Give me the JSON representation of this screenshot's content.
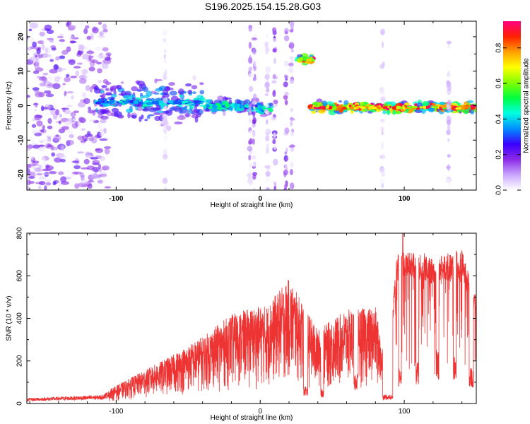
{
  "title": "S196.2025.154.15.28.G03",
  "chart_data": [
    {
      "type": "heatmap",
      "xlabel": "Height of straight line (km)",
      "ylabel": "Frequency (Hz)",
      "xlim": [
        -162,
        150
      ],
      "ylim": [
        -24.5,
        24.5
      ],
      "xticks": [
        -100,
        0,
        100
      ],
      "yticks": [
        -20,
        -10,
        0,
        10,
        20
      ],
      "colorbar": {
        "label": "Normalized spectral amplitude",
        "range": [
          0.0,
          0.95
        ],
        "ticks": [
          "0.0",
          "0.2",
          "0.4",
          "0.6",
          "0.8"
        ],
        "colors": [
          "#ffffff",
          "#c9a6ff",
          "#8b2ae6",
          "#3a00ff",
          "#0090ff",
          "#00ffe0",
          "#00ff40",
          "#80ff00",
          "#ffff00",
          "#ffa000",
          "#ff2000",
          "#ff0080"
        ]
      },
      "segments": [
        {
          "x_start": -162,
          "x_end": -105,
          "freq_center": 0,
          "freq_spread": 24,
          "peak_amplitude": 0.2
        },
        {
          "x_start": -115,
          "x_end": -40,
          "freq_center": 1,
          "freq_spread": 6,
          "peak_amplitude": 0.45
        },
        {
          "x_start": -38,
          "x_end": -8,
          "freq_center": 0,
          "freq_spread": 2,
          "peak_amplitude": 0.5
        },
        {
          "x_start": -8,
          "x_end": 8,
          "freq_center": -1,
          "freq_spread": 2,
          "peak_amplitude": 0.5
        },
        {
          "x_start": 26,
          "x_end": 36,
          "freq_center": 13.5,
          "freq_spread": 1.5,
          "peak_amplitude": 0.9
        },
        {
          "x_start": 35,
          "x_end": 150,
          "freq_center": -0.5,
          "freq_spread": 1.5,
          "peak_amplitude": 0.95
        }
      ]
    },
    {
      "type": "line",
      "xlabel": "Height of straight line (km)",
      "ylabel": "SNR (10 * v/v)",
      "xlim": [
        -162,
        150
      ],
      "ylim": [
        0,
        800
      ],
      "xticks": [
        -100,
        0,
        100
      ],
      "yticks": [
        0,
        200,
        400,
        600,
        800
      ],
      "color": "#ee3333",
      "envelope": {
        "x": [
          -162,
          -110,
          -100,
          -80,
          -60,
          -40,
          -20,
          -5,
          5,
          20,
          40,
          60,
          80,
          88,
          95,
          100,
          120,
          140,
          150
        ],
        "y": [
          25,
          40,
          80,
          150,
          220,
          300,
          400,
          430,
          440,
          560,
          330,
          420,
          430,
          150,
          680,
          700,
          660,
          700,
          480
        ]
      },
      "dips": [
        {
          "x_start": 30,
          "x_end": 33,
          "y": 60
        },
        {
          "x_start": 42,
          "x_end": 44,
          "y": 50
        },
        {
          "x_start": 65,
          "x_end": 68,
          "y": 100
        },
        {
          "x_start": 85,
          "x_end": 92,
          "y": 30
        },
        {
          "x_start": 96,
          "x_end": 98,
          "y": 120
        },
        {
          "x_start": 108,
          "x_end": 110,
          "y": 140
        },
        {
          "x_start": 122,
          "x_end": 124,
          "y": 180
        },
        {
          "x_start": 134,
          "x_end": 136,
          "y": 160
        },
        {
          "x_start": 145,
          "x_end": 148,
          "y": 120
        }
      ],
      "peak": {
        "x": 99,
        "y": 805
      }
    }
  ]
}
